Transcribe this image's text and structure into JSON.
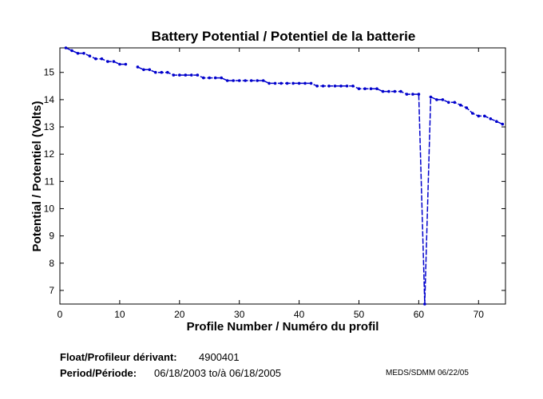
{
  "chart_data": {
    "type": "line",
    "title": "Battery Potential / Potentiel de la batterie",
    "xlabel": "Profile Number / Numéro du profil",
    "ylabel": "Potential / Potentiel (Volts)",
    "xlim": [
      0,
      74.5
    ],
    "ylim": [
      6.5,
      15.9
    ],
    "xticks": [
      0,
      10,
      20,
      30,
      40,
      50,
      60,
      70
    ],
    "yticks": [
      7,
      8,
      9,
      10,
      11,
      12,
      13,
      14,
      15
    ],
    "series": [
      {
        "name": "Battery Potential",
        "color": "#0000cc",
        "segments": [
          [
            [
              1,
              15.9
            ],
            [
              2,
              15.8
            ],
            [
              3,
              15.7
            ],
            [
              4,
              15.7
            ],
            [
              5,
              15.6
            ],
            [
              6,
              15.5
            ],
            [
              7,
              15.5
            ],
            [
              8,
              15.4
            ],
            [
              9,
              15.4
            ],
            [
              10,
              15.3
            ],
            [
              11,
              15.3
            ]
          ],
          [
            [
              13,
              15.2
            ],
            [
              14,
              15.1
            ],
            [
              15,
              15.1
            ],
            [
              16,
              15.0
            ],
            [
              17,
              15.0
            ],
            [
              18,
              15.0
            ],
            [
              19,
              14.9
            ],
            [
              20,
              14.9
            ],
            [
              21,
              14.9
            ],
            [
              22,
              14.9
            ],
            [
              23,
              14.9
            ],
            [
              24,
              14.8
            ],
            [
              25,
              14.8
            ],
            [
              26,
              14.8
            ],
            [
              27,
              14.8
            ],
            [
              28,
              14.7
            ],
            [
              29,
              14.7
            ],
            [
              30,
              14.7
            ],
            [
              31,
              14.7
            ],
            [
              32,
              14.7
            ],
            [
              33,
              14.7
            ],
            [
              34,
              14.7
            ],
            [
              35,
              14.6
            ],
            [
              36,
              14.6
            ],
            [
              37,
              14.6
            ],
            [
              38,
              14.6
            ],
            [
              39,
              14.6
            ],
            [
              40,
              14.6
            ],
            [
              41,
              14.6
            ],
            [
              42,
              14.6
            ],
            [
              43,
              14.5
            ],
            [
              44,
              14.5
            ],
            [
              45,
              14.5
            ],
            [
              46,
              14.5
            ],
            [
              47,
              14.5
            ],
            [
              48,
              14.5
            ],
            [
              49,
              14.5
            ],
            [
              50,
              14.4
            ],
            [
              51,
              14.4
            ],
            [
              52,
              14.4
            ],
            [
              53,
              14.4
            ],
            [
              54,
              14.3
            ],
            [
              55,
              14.3
            ],
            [
              56,
              14.3
            ],
            [
              57,
              14.3
            ],
            [
              58,
              14.2
            ],
            [
              59,
              14.2
            ],
            [
              60,
              14.2
            ],
            [
              61,
              6.5
            ],
            [
              62,
              14.1
            ],
            [
              63,
              14.0
            ],
            [
              64,
              14.0
            ],
            [
              65,
              13.9
            ],
            [
              66,
              13.9
            ],
            [
              67,
              13.8
            ],
            [
              68,
              13.7
            ],
            [
              69,
              13.5
            ],
            [
              70,
              13.4
            ],
            [
              71,
              13.4
            ],
            [
              72,
              13.3
            ],
            [
              73,
              13.2
            ],
            [
              74,
              13.1
            ]
          ]
        ]
      }
    ]
  },
  "footer": {
    "float_label": "Float/Profileur dérivant:",
    "float_value": "4900401",
    "period_label": "Period/Période:",
    "period_value": "06/18/2003  to/à  06/18/2005",
    "credit": "MEDS/SDMM  06/22/05"
  }
}
